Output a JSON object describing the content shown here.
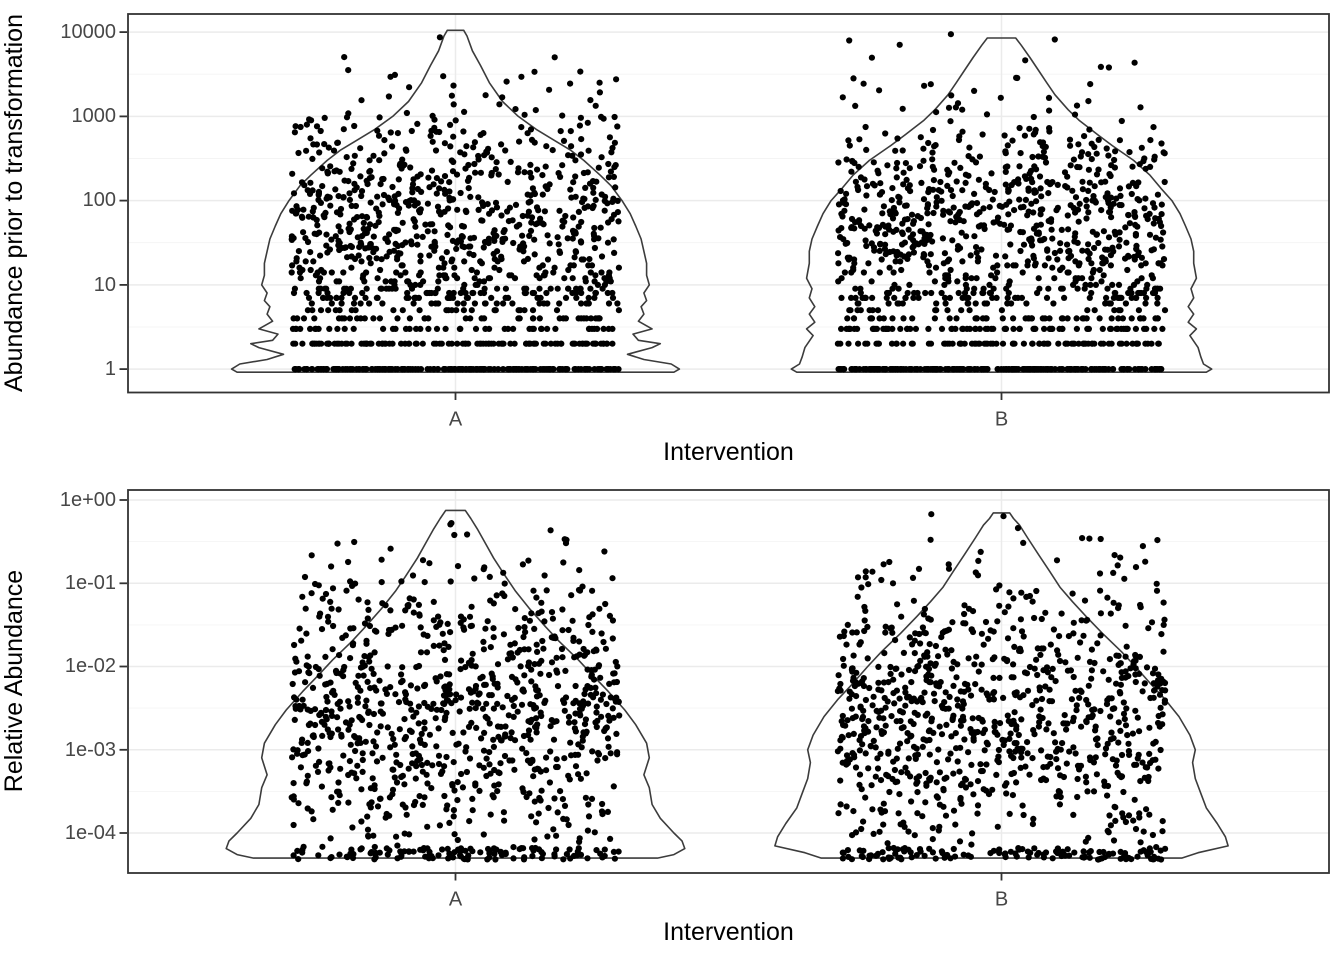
{
  "figure_description": "Two stacked violin plots with jittered points comparing interventions A and B",
  "chart_data": [
    {
      "type": "violin-jitter",
      "title": "",
      "xlabel": "Intervention",
      "ylabel": "Abundance prior to transformation",
      "yscale": "log10",
      "ylim": [
        0.52,
        16500
      ],
      "grid": "major+minor",
      "legend": "none",
      "categories": [
        "A",
        "B"
      ],
      "yticks": [
        {
          "value": 10000,
          "label": "10000"
        },
        {
          "value": 1000,
          "label": "1000"
        },
        {
          "value": 100,
          "label": "100"
        },
        {
          "value": 10,
          "label": "10"
        },
        {
          "value": 1,
          "label": "1"
        }
      ],
      "jitter_halfwidth": 0.3,
      "point_color": "#000000",
      "groups": [
        {
          "category": "A",
          "n": 1250,
          "seed": 11,
          "distribution": {
            "discrete": [
              [
                1,
                0.155
              ],
              [
                2,
                0.075
              ],
              [
                3,
                0.05
              ],
              [
                4,
                0.034
              ],
              [
                5,
                0.024
              ]
            ],
            "int_uniform": {
              "lo": 6,
              "hi": 9,
              "p": 0.05
            },
            "lognormal": {
              "mu": 1.55,
              "sigma": 0.85,
              "lo": 0.78,
              "hi": 4.02
            },
            "round_below": 20
          },
          "violin": [
            [
              10500,
              0.015
            ],
            [
              9000,
              0.021
            ],
            [
              6000,
              0.031
            ],
            [
              4000,
              0.046
            ],
            [
              2500,
              0.062
            ],
            [
              1500,
              0.086
            ],
            [
              1000,
              0.115
            ],
            [
              700,
              0.148
            ],
            [
              500,
              0.185
            ],
            [
              400,
              0.21
            ],
            [
              300,
              0.235
            ],
            [
              200,
              0.265
            ],
            [
              150,
              0.285
            ],
            [
              100,
              0.305
            ],
            [
              70,
              0.32
            ],
            [
              50,
              0.33
            ],
            [
              35,
              0.34
            ],
            [
              25,
              0.345
            ],
            [
              18,
              0.35
            ],
            [
              13,
              0.35
            ],
            [
              10,
              0.355
            ],
            [
              8,
              0.345
            ],
            [
              6.5,
              0.35
            ],
            [
              5.5,
              0.34
            ],
            [
              4.5,
              0.345
            ],
            [
              3.7,
              0.335
            ],
            [
              3,
              0.36
            ],
            [
              2.6,
              0.325
            ],
            [
              2.2,
              0.335
            ],
            [
              2,
              0.375
            ],
            [
              1.8,
              0.36
            ],
            [
              1.5,
              0.315
            ],
            [
              1.3,
              0.345
            ],
            [
              1.15,
              0.395
            ],
            [
              1,
              0.41
            ],
            [
              0.92,
              0.4
            ]
          ]
        },
        {
          "category": "B",
          "n": 1250,
          "seed": 22,
          "distribution": {
            "discrete": [
              [
                1,
                0.155
              ],
              [
                2,
                0.075
              ],
              [
                3,
                0.05
              ],
              [
                4,
                0.034
              ],
              [
                5,
                0.024
              ]
            ],
            "int_uniform": {
              "lo": 6,
              "hi": 9,
              "p": 0.05
            },
            "lognormal": {
              "mu": 1.55,
              "sigma": 0.85,
              "lo": 0.78,
              "hi": 3.98
            },
            "round_below": 20
          },
          "violin": [
            [
              8500,
              0.026
            ],
            [
              7000,
              0.036
            ],
            [
              5000,
              0.052
            ],
            [
              3500,
              0.068
            ],
            [
              2500,
              0.083
            ],
            [
              1800,
              0.098
            ],
            [
              1200,
              0.122
            ],
            [
              900,
              0.142
            ],
            [
              600,
              0.177
            ],
            [
              450,
              0.203
            ],
            [
              300,
              0.242
            ],
            [
              200,
              0.272
            ],
            [
              140,
              0.292
            ],
            [
              100,
              0.312
            ],
            [
              70,
              0.327
            ],
            [
              50,
              0.337
            ],
            [
              35,
              0.347
            ],
            [
              25,
              0.352
            ],
            [
              18,
              0.352
            ],
            [
              12,
              0.357
            ],
            [
              9,
              0.347
            ],
            [
              7,
              0.352
            ],
            [
              5.5,
              0.342
            ],
            [
              4.5,
              0.352
            ],
            [
              3.6,
              0.342
            ],
            [
              3,
              0.357
            ],
            [
              2.5,
              0.345
            ],
            [
              1.8,
              0.36
            ],
            [
              1.4,
              0.365
            ],
            [
              1.15,
              0.37
            ],
            [
              1,
              0.385
            ],
            [
              0.92,
              0.375
            ]
          ]
        }
      ]
    },
    {
      "type": "violin-jitter",
      "title": "",
      "xlabel": "Intervention",
      "ylabel": "Relative Abundance",
      "yscale": "log10",
      "ylim": [
        3.3e-05,
        1.74
      ],
      "grid": "major+minor",
      "legend": "none",
      "categories": [
        "A",
        "B"
      ],
      "yticks": [
        {
          "value": 1,
          "label": "1e+00"
        },
        {
          "value": 0.1,
          "label": "1e-01"
        },
        {
          "value": 0.01,
          "label": "1e-02"
        },
        {
          "value": 0.001,
          "label": "1e-03"
        },
        {
          "value": 0.0001,
          "label": "1e-04"
        }
      ],
      "jitter_halfwidth": 0.3,
      "point_color": "#000000",
      "groups": [
        {
          "category": "A",
          "n": 1000,
          "seed": 33,
          "distribution": {
            "floor": {
              "p": 0.12,
              "lo": -4.32,
              "hi": -4.18
            },
            "lognormal": {
              "mu": -2.55,
              "sigma": 0.88,
              "lo": -4.18,
              "hi": -0.12
            }
          },
          "violin": [
            [
              0.75,
              0.018
            ],
            [
              0.6,
              0.028
            ],
            [
              0.45,
              0.04
            ],
            [
              0.3,
              0.055
            ],
            [
              0.2,
              0.07
            ],
            [
              0.12,
              0.092
            ],
            [
              0.08,
              0.11
            ],
            [
              0.05,
              0.135
            ],
            [
              0.03,
              0.165
            ],
            [
              0.02,
              0.19
            ],
            [
              0.012,
              0.225
            ],
            [
              0.008,
              0.25
            ],
            [
              0.005,
              0.28
            ],
            [
              0.003,
              0.31
            ],
            [
              0.002,
              0.33
            ],
            [
              0.0012,
              0.35
            ],
            [
              0.0008,
              0.355
            ],
            [
              0.0005,
              0.345
            ],
            [
              0.00035,
              0.355
            ],
            [
              0.00022,
              0.36
            ],
            [
              0.00015,
              0.375
            ],
            [
              0.0001,
              0.4
            ],
            [
              8e-05,
              0.415
            ],
            [
              6.5e-05,
              0.42
            ],
            [
              5.5e-05,
              0.4
            ],
            [
              5e-05,
              0.37
            ]
          ]
        },
        {
          "category": "B",
          "n": 1000,
          "seed": 44,
          "distribution": {
            "floor": {
              "p": 0.12,
              "lo": -4.32,
              "hi": -4.18
            },
            "lognormal": {
              "mu": -2.55,
              "sigma": 0.88,
              "lo": -4.18,
              "hi": -0.15
            }
          },
          "violin": [
            [
              0.7,
              0.015
            ],
            [
              0.6,
              0.022
            ],
            [
              0.5,
              0.033
            ],
            [
              0.35,
              0.048
            ],
            [
              0.22,
              0.068
            ],
            [
              0.14,
              0.088
            ],
            [
              0.09,
              0.107
            ],
            [
              0.06,
              0.13
            ],
            [
              0.04,
              0.155
            ],
            [
              0.025,
              0.185
            ],
            [
              0.015,
              0.22
            ],
            [
              0.01,
              0.245
            ],
            [
              0.006,
              0.275
            ],
            [
              0.004,
              0.3
            ],
            [
              0.0025,
              0.325
            ],
            [
              0.0015,
              0.345
            ],
            [
              0.001,
              0.355
            ],
            [
              0.0007,
              0.35
            ],
            [
              0.00045,
              0.355
            ],
            [
              0.0003,
              0.365
            ],
            [
              0.0002,
              0.375
            ],
            [
              0.00013,
              0.395
            ],
            [
              9e-05,
              0.41
            ],
            [
              7e-05,
              0.415
            ],
            [
              5.8e-05,
              0.36
            ],
            [
              5e-05,
              0.33
            ]
          ]
        }
      ]
    }
  ]
}
